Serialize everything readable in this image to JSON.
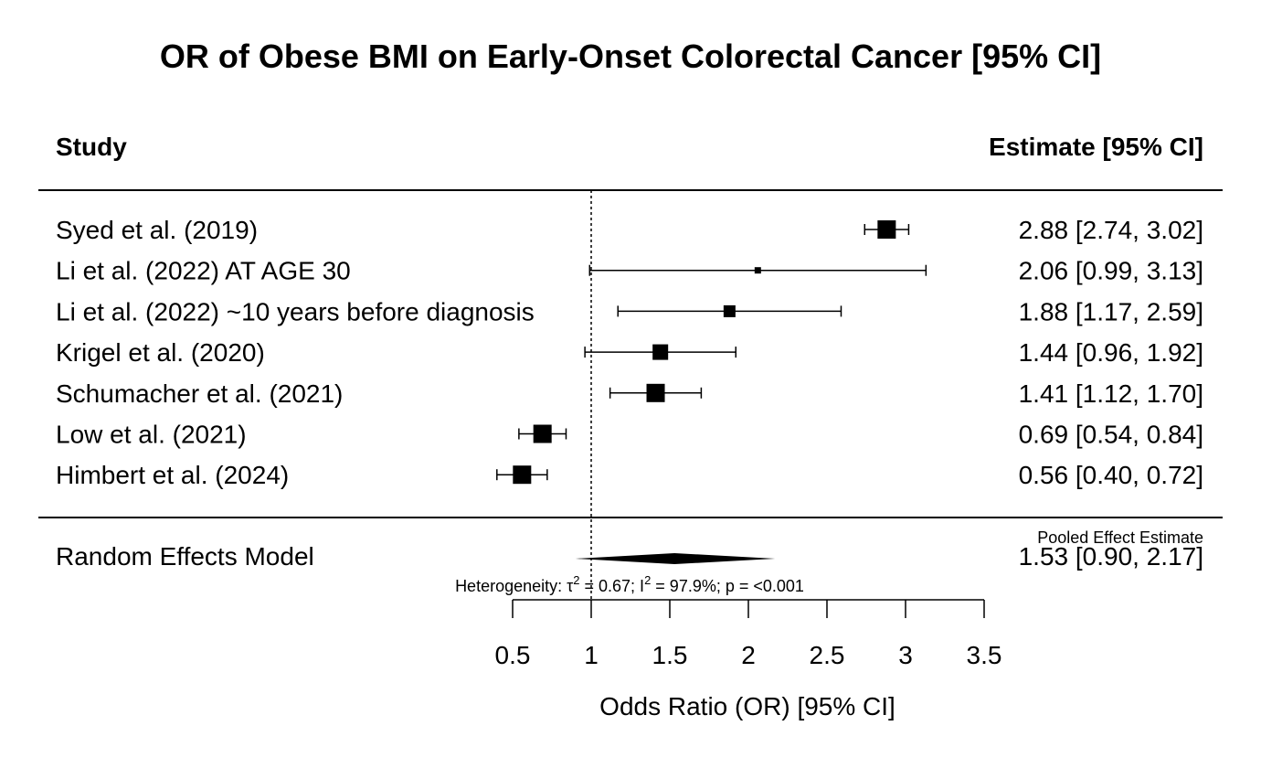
{
  "chart_data": {
    "type": "forest",
    "title": "OR of Obese BMI on Early-Onset Colorectal Cancer [95% CI]",
    "header": {
      "study": "Study",
      "estimate": "Estimate [95% CI]"
    },
    "studies": [
      {
        "label": "Syed et al. (2019)",
        "estimate": 2.88,
        "lower": 2.74,
        "upper": 3.02,
        "text": "2.88 [2.74, 3.02]",
        "weight_size": 20
      },
      {
        "label": "Li et al. (2022) AT AGE 30",
        "estimate": 2.06,
        "lower": 0.99,
        "upper": 3.13,
        "text": "2.06 [0.99, 3.13]",
        "weight_size": 7
      },
      {
        "label": "Li et al. (2022) ~10 years before diagnosis",
        "estimate": 1.88,
        "lower": 1.17,
        "upper": 2.59,
        "text": "1.88 [1.17, 2.59]",
        "weight_size": 13
      },
      {
        "label": "Krigel et al. (2020)",
        "estimate": 1.44,
        "lower": 0.96,
        "upper": 1.92,
        "text": "1.44 [0.96, 1.92]",
        "weight_size": 17
      },
      {
        "label": "Schumacher et al. (2021)",
        "estimate": 1.41,
        "lower": 1.12,
        "upper": 1.7,
        "text": "1.41 [1.12, 1.70]",
        "weight_size": 20
      },
      {
        "label": "Low et al. (2021)",
        "estimate": 0.69,
        "lower": 0.54,
        "upper": 0.84,
        "text": "0.69 [0.54, 0.84]",
        "weight_size": 20
      },
      {
        "label": "Himbert et al. (2024)",
        "estimate": 0.56,
        "lower": 0.4,
        "upper": 0.72,
        "text": "0.56 [0.40, 0.72]",
        "weight_size": 20
      }
    ],
    "pooled": {
      "label": "Random Effects Model",
      "estimate": 1.53,
      "lower": 0.9,
      "upper": 2.17,
      "text": "1.53 [0.90, 2.17]",
      "caption": "Pooled Effect Estimate"
    },
    "heterogeneity": {
      "prefix": "Heterogeneity: ",
      "tau_symbol": "τ",
      "tau_value": " = 0.67;  I",
      "i2_value": " = 97.9%; p =  <0.001",
      "sup": "2"
    },
    "reference_line": 1,
    "x_axis": {
      "label": "Odds Ratio (OR) [95% CI]",
      "range": [
        0.5,
        3.5
      ],
      "ticks": [
        0.5,
        1,
        1.5,
        2,
        2.5,
        3,
        3.5
      ],
      "tick_labels": [
        "0.5",
        "1",
        "1.5",
        "2",
        "2.5",
        "3",
        "3.5"
      ]
    }
  }
}
